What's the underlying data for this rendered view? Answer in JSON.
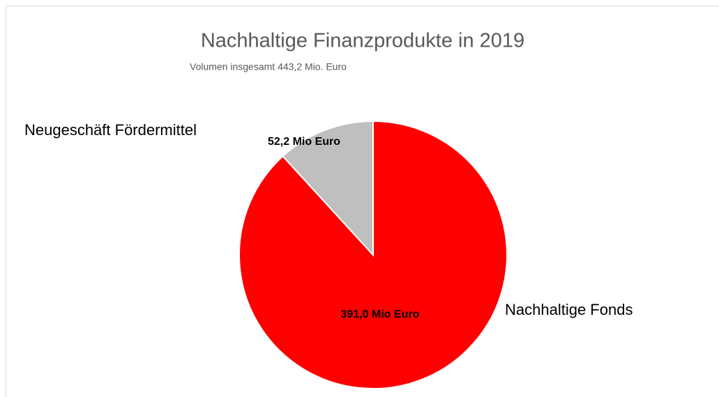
{
  "chart_data": {
    "type": "pie",
    "title": "Nachhaltige Finanzprodukte in 2019",
    "subtitle": "Volumen insgesamt 443,2 Mio. Euro",
    "categories": [
      "Nachhaltige Fonds",
      "Neugeschäft Fördermittel"
    ],
    "values": [
      391.0,
      52.2
    ],
    "value_labels": [
      "391,0 Mio Euro",
      "52,2 Mio Euro"
    ],
    "colors": [
      "#ff0000",
      "#bfbfbf"
    ]
  }
}
